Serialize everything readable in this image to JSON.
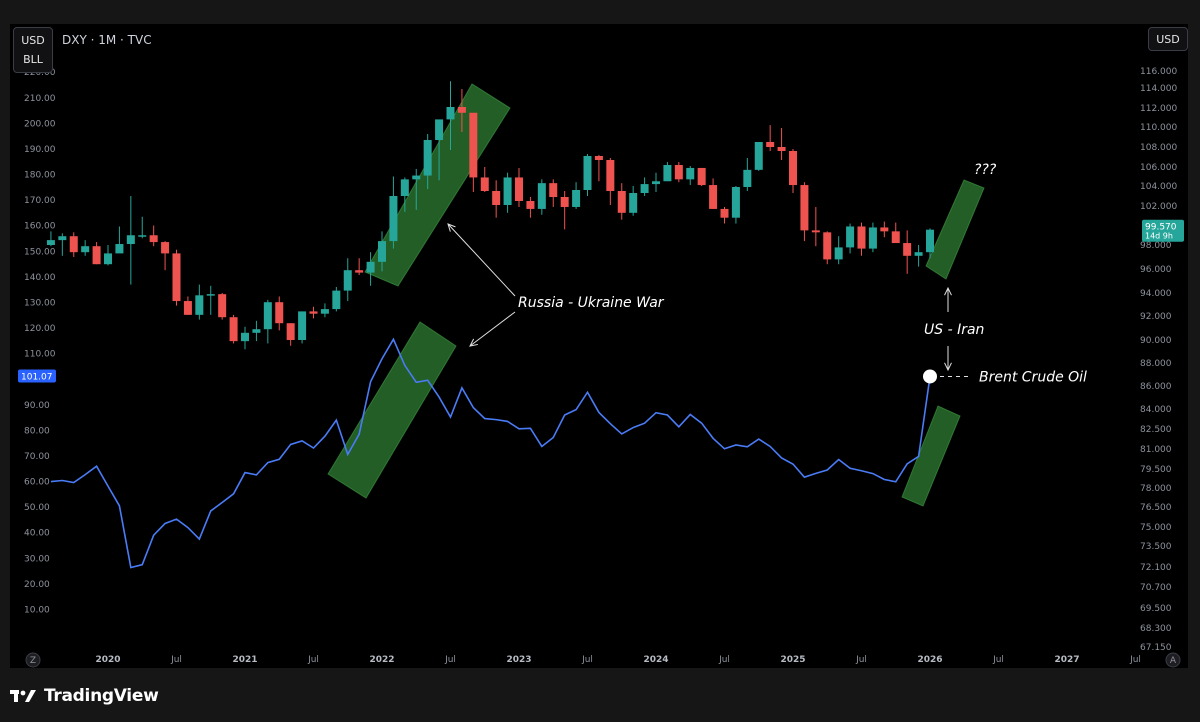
{
  "header": {
    "symbol": "DXY · 1M · TVC",
    "left_currency": "USD",
    "left_unit": "BLL",
    "right_currency": "USD"
  },
  "footer": {
    "logo_icon": "tradingview-logo-icon",
    "brand": "TradingView"
  },
  "axis_controls": {
    "left_corner": "Z",
    "right_corner": "A"
  },
  "chart_data": {
    "type": "line",
    "x_ticks": [
      {
        "label": "2020",
        "t": 2020.0,
        "year": true
      },
      {
        "label": "Jul",
        "t": 2020.5,
        "year": false
      },
      {
        "label": "2021",
        "t": 2021.0,
        "year": true
      },
      {
        "label": "Jul",
        "t": 2021.5,
        "year": false
      },
      {
        "label": "2022",
        "t": 2022.0,
        "year": true
      },
      {
        "label": "Jul",
        "t": 2022.5,
        "year": false
      },
      {
        "label": "2023",
        "t": 2023.0,
        "year": true
      },
      {
        "label": "Jul",
        "t": 2023.5,
        "year": false
      },
      {
        "label": "2024",
        "t": 2024.0,
        "year": true
      },
      {
        "label": "Jul",
        "t": 2024.5,
        "year": false
      },
      {
        "label": "2025",
        "t": 2025.0,
        "year": true
      },
      {
        "label": "Jul",
        "t": 2025.5,
        "year": false
      },
      {
        "label": "2026",
        "t": 2026.0,
        "year": true
      },
      {
        "label": "Jul",
        "t": 2026.5,
        "year": false
      },
      {
        "label": "2027",
        "t": 2027.0,
        "year": true
      },
      {
        "label": "Jul",
        "t": 2027.5,
        "year": false
      }
    ],
    "left_axis": {
      "ticks": [
        "220.00",
        "210.00",
        "200.00",
        "190.00",
        "180.00",
        "170.00",
        "160.00",
        "150.00",
        "140.00",
        "130.00",
        "120.00",
        "110.00",
        "90.00",
        "80.00",
        "70.00",
        "60.00",
        "50.00",
        "40.00",
        "30.00",
        "20.00",
        "10.00"
      ],
      "tick_values": [
        220,
        210,
        200,
        190,
        180,
        170,
        160,
        150,
        140,
        130,
        120,
        110,
        90,
        80,
        70,
        60,
        50,
        40,
        30,
        20,
        10
      ],
      "range": [
        0,
        225
      ]
    },
    "right_axis": {
      "ticks": [
        "116.000",
        "114.000",
        "112.000",
        "110.000",
        "108.000",
        "106.000",
        "104.000",
        "102.000",
        "98.000",
        "96.000",
        "94.000",
        "92.000",
        "90.000",
        "88.000",
        "86.000",
        "84.000",
        "82.500",
        "81.000",
        "79.500",
        "78.000",
        "76.500",
        "75.000",
        "73.500",
        "72.100",
        "70.700",
        "69.500",
        "68.300",
        "67.150"
      ],
      "tick_values": [
        116,
        114,
        112,
        110,
        108,
        106,
        104,
        102,
        98,
        96,
        94,
        92,
        90,
        88,
        86,
        84,
        82.5,
        81,
        79.5,
        78,
        76.5,
        75,
        73.5,
        72.1,
        70.7,
        69.5,
        68.3,
        67.15
      ]
    },
    "series": [
      {
        "name": "DXY",
        "kind": "candlestick",
        "up_color": "#26a69a",
        "down_color": "#ef5350",
        "start": "2019-08",
        "ohlc": [
          [
            98.0,
            99.4,
            97.9,
            98.5
          ],
          [
            98.5,
            99.2,
            97.1,
            98.9
          ],
          [
            98.9,
            99.3,
            97.0,
            97.4
          ],
          [
            97.4,
            98.5,
            97.1,
            97.9
          ],
          [
            97.9,
            98.3,
            96.4,
            96.4
          ],
          [
            96.4,
            98.0,
            96.3,
            97.3
          ],
          [
            97.3,
            99.9,
            97.5,
            98.1
          ],
          [
            98.1,
            103.0,
            94.7,
            99.0
          ],
          [
            99.0,
            100.9,
            98.7,
            99.0
          ],
          [
            99.0,
            100.0,
            97.9,
            98.3
          ],
          [
            98.3,
            98.4,
            95.9,
            97.3
          ],
          [
            97.3,
            97.6,
            92.9,
            93.3
          ],
          [
            93.3,
            93.7,
            92.1,
            92.1
          ],
          [
            92.1,
            94.7,
            91.7,
            93.8
          ],
          [
            93.8,
            94.6,
            92.1,
            93.9
          ],
          [
            93.9,
            94.0,
            91.7,
            91.9
          ],
          [
            91.9,
            92.1,
            89.7,
            89.9
          ],
          [
            89.9,
            91.1,
            89.2,
            90.6
          ],
          [
            90.6,
            91.6,
            89.9,
            90.9
          ],
          [
            90.9,
            93.4,
            89.7,
            93.2
          ],
          [
            93.2,
            93.7,
            90.8,
            91.4
          ],
          [
            91.4,
            91.4,
            89.5,
            90.0
          ],
          [
            90.0,
            92.4,
            89.7,
            92.4
          ],
          [
            92.4,
            92.8,
            91.8,
            92.2
          ],
          [
            92.2,
            93.1,
            91.9,
            92.6
          ],
          [
            92.6,
            94.5,
            92.4,
            94.2
          ],
          [
            94.2,
            96.9,
            93.3,
            95.9
          ],
          [
            95.9,
            96.9,
            95.5,
            95.7
          ],
          [
            95.7,
            97.4,
            94.6,
            96.6
          ],
          [
            96.6,
            99.4,
            95.8,
            98.4
          ],
          [
            98.4,
            105.0,
            97.7,
            103.0
          ],
          [
            103.0,
            104.9,
            101.4,
            104.7
          ],
          [
            104.7,
            105.8,
            101.6,
            105.1
          ],
          [
            105.1,
            109.3,
            103.7,
            108.7
          ],
          [
            108.7,
            109.5,
            104.6,
            110.8
          ],
          [
            110.8,
            114.8,
            107.7,
            112.1
          ],
          [
            112.1,
            113.9,
            109.5,
            111.5
          ],
          [
            111.5,
            111.4,
            103.4,
            104.9
          ],
          [
            104.9,
            106.0,
            103.4,
            103.5
          ],
          [
            103.5,
            104.6,
            100.8,
            102.1
          ],
          [
            102.1,
            105.4,
            101.3,
            104.9
          ],
          [
            104.9,
            105.9,
            101.9,
            102.5
          ],
          [
            102.5,
            102.9,
            100.8,
            101.7
          ],
          [
            101.7,
            104.7,
            101.1,
            104.3
          ],
          [
            104.3,
            104.7,
            101.9,
            102.9
          ],
          [
            102.9,
            103.5,
            99.6,
            101.9
          ],
          [
            101.9,
            104.4,
            101.7,
            103.6
          ],
          [
            103.6,
            107.3,
            103.0,
            107.1
          ],
          [
            107.1,
            107.2,
            104.5,
            106.7
          ],
          [
            106.7,
            106.9,
            102.1,
            103.5
          ],
          [
            103.5,
            104.3,
            100.6,
            101.3
          ],
          [
            101.3,
            104.0,
            101.0,
            103.3
          ],
          [
            103.3,
            104.9,
            103.0,
            104.2
          ],
          [
            104.2,
            105.4,
            103.4,
            104.5
          ],
          [
            104.5,
            106.5,
            104.8,
            106.2
          ],
          [
            106.2,
            106.5,
            104.4,
            104.7
          ],
          [
            104.7,
            106.1,
            104.1,
            105.9
          ],
          [
            105.9,
            105.9,
            104.0,
            104.1
          ],
          [
            104.1,
            104.8,
            101.7,
            101.7
          ],
          [
            101.7,
            101.9,
            100.2,
            100.8
          ],
          [
            100.8,
            104.0,
            100.2,
            103.9
          ],
          [
            103.9,
            106.9,
            103.5,
            105.7
          ],
          [
            105.7,
            108.5,
            105.6,
            108.5
          ],
          [
            108.5,
            110.2,
            107.6,
            108.0
          ],
          [
            108.0,
            109.9,
            106.7,
            107.6
          ],
          [
            107.6,
            107.8,
            103.3,
            104.1
          ],
          [
            104.1,
            104.4,
            98.4,
            99.5
          ],
          [
            99.5,
            101.9,
            97.9,
            99.3
          ],
          [
            99.3,
            99.4,
            96.4,
            96.8
          ],
          [
            96.8,
            98.9,
            96.4,
            97.8
          ],
          [
            97.8,
            100.2,
            97.3,
            99.9
          ],
          [
            99.9,
            100.3,
            97.1,
            97.7
          ],
          [
            97.7,
            100.3,
            97.4,
            99.8
          ],
          [
            99.8,
            100.4,
            98.8,
            99.4
          ],
          [
            99.4,
            100.3,
            98.4,
            98.2
          ],
          [
            98.2,
            99.5,
            95.6,
            97.1
          ],
          [
            97.1,
            98.0,
            96.2,
            97.4
          ],
          [
            97.4,
            99.7,
            96.9,
            99.57
          ]
        ]
      },
      {
        "name": "Brent Crude Oil",
        "kind": "line",
        "color": "#4a7cf7",
        "start": "2019-08",
        "values": [
          60.0,
          60.4,
          59.6,
          62.7,
          66.0,
          58.2,
          50.5,
          26.4,
          27.5,
          39.0,
          43.6,
          45.3,
          42.0,
          37.5,
          48.5,
          51.8,
          55.2,
          63.5,
          62.6,
          67.4,
          68.7,
          74.5,
          75.9,
          73.1,
          77.7,
          84.0,
          70.6,
          78.5,
          99.0,
          108.0,
          115.6,
          105.4,
          98.8,
          99.6,
          93.0,
          85.2,
          96.6,
          88.9,
          84.6,
          84.2,
          83.5,
          80.6,
          80.8,
          73.7,
          77.2,
          86.0,
          88.1,
          94.9,
          87.0,
          82.6,
          78.6,
          81.1,
          82.8,
          86.9,
          86.0,
          81.4,
          86.2,
          82.8,
          76.9,
          72.8,
          74.3,
          73.6,
          76.6,
          73.7,
          69.2,
          66.8,
          61.7,
          63.2,
          64.5,
          68.6,
          65.2,
          64.2,
          63.1,
          60.8,
          59.9,
          66.9,
          69.8,
          101.07
        ]
      }
    ],
    "current_labels": {
      "dxy_value": "99.570",
      "dxy_countdown": "14d 9h",
      "dxy_color": "#26a69a",
      "oil_value": "101.07",
      "oil_color": "#2962ff"
    },
    "annotations": {
      "war": "Russia - Ukraine War",
      "iran": "US - Iran",
      "oil": "Brent Crude Oil",
      "question": "???",
      "box_color": "#2e7d32"
    },
    "grid": false,
    "legend": "none"
  }
}
